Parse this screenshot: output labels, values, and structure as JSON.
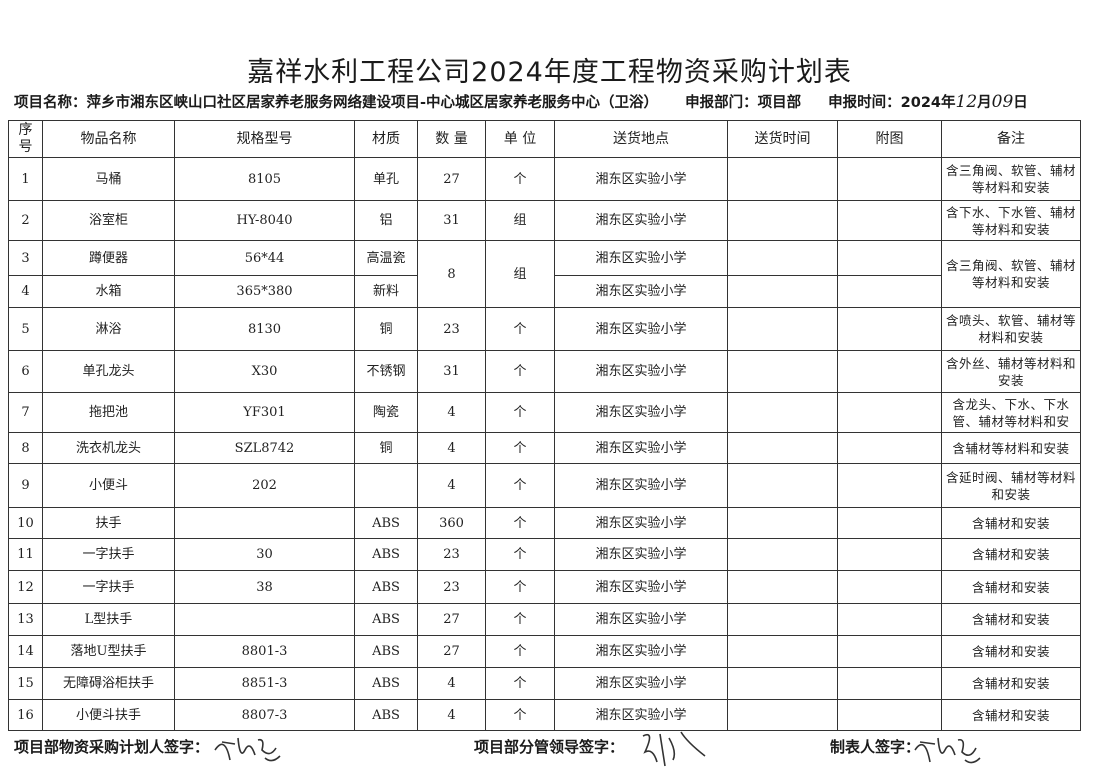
{
  "title": "嘉祥水利工程公司2024年度工程物资采购计划表",
  "project": {
    "name_label": "项目名称：",
    "name": "萍乡市湘东区峡山口社区居家养老服务网络建设项目-中心城区居家养老服务中心（卫浴）",
    "dept_label": "申报部门：",
    "dept": "项目部",
    "date_label": "申报时间：",
    "date_year": "2024年",
    "date_month": "12",
    "date_month_unit": "月",
    "date_day": "09",
    "date_day_unit": "日"
  },
  "columns": [
    "序号",
    "物品名称",
    "规格型号",
    "材质",
    "数 量",
    "单 位",
    "送货地点",
    "送货时间",
    "附图",
    "备注"
  ],
  "rows": [
    {
      "no": "1",
      "name": "马桶",
      "spec": "8105",
      "mat": "单孔",
      "qty": "27",
      "unit": "个",
      "loc": "湘东区实验小学",
      "note": "含三角阀、软管、辅材等材料和安装"
    },
    {
      "no": "2",
      "name": "浴室柜",
      "spec": "HY-8040",
      "mat": "铝",
      "qty": "31",
      "unit": "组",
      "loc": "湘东区实验小学",
      "note": "含下水、下水管、辅材等材料和安装"
    },
    {
      "no": "3",
      "name": "蹲便器",
      "spec": "56*44",
      "mat": "高温瓷",
      "qty": "8",
      "unit": "组",
      "loc": "湘东区实验小学",
      "note": "含三角阀、软管、辅材等材料和安装"
    },
    {
      "no": "4",
      "name": "水箱",
      "spec": "365*380",
      "mat": "新料",
      "loc": "湘东区实验小学"
    },
    {
      "no": "5",
      "name": "淋浴",
      "spec": "8130",
      "mat": "铜",
      "qty": "23",
      "unit": "个",
      "loc": "湘东区实验小学",
      "note": "含喷头、软管、辅材等材料和安装"
    },
    {
      "no": "6",
      "name": "单孔龙头",
      "spec": "X30",
      "mat": "不锈钢",
      "qty": "31",
      "unit": "个",
      "loc": "湘东区实验小学",
      "note": "含外丝、辅材等材料和安装"
    },
    {
      "no": "7",
      "name": "拖把池",
      "spec": "YF301",
      "mat": "陶瓷",
      "qty": "4",
      "unit": "个",
      "loc": "湘东区实验小学",
      "note": "含龙头、下水、下水管、辅材等材料和安"
    },
    {
      "no": "8",
      "name": "洗衣机龙头",
      "spec": "SZL8742",
      "mat": "铜",
      "qty": "4",
      "unit": "个",
      "loc": "湘东区实验小学",
      "note": "含辅材等材料和安装"
    },
    {
      "no": "9",
      "name": "小便斗",
      "spec": "202",
      "mat": "",
      "qty": "4",
      "unit": "个",
      "loc": "湘东区实验小学",
      "note": "含延时阀、辅材等材料和安装"
    },
    {
      "no": "10",
      "name": "扶手",
      "spec": "",
      "mat": "ABS",
      "qty": "360",
      "unit": "个",
      "loc": "湘东区实验小学",
      "note": "含辅材和安装"
    },
    {
      "no": "11",
      "name": "一字扶手",
      "spec": "30",
      "mat": "ABS",
      "qty": "23",
      "unit": "个",
      "loc": "湘东区实验小学",
      "note": "含辅材和安装"
    },
    {
      "no": "12",
      "name": "一字扶手",
      "spec": "38",
      "mat": "ABS",
      "qty": "23",
      "unit": "个",
      "loc": "湘东区实验小学",
      "note": "含辅材和安装"
    },
    {
      "no": "13",
      "name": "L型扶手",
      "spec": "",
      "mat": "ABS",
      "qty": "27",
      "unit": "个",
      "loc": "湘东区实验小学",
      "note": "含辅材和安装"
    },
    {
      "no": "14",
      "name": "落地U型扶手",
      "spec": "8801-3",
      "mat": "ABS",
      "qty": "27",
      "unit": "个",
      "loc": "湘东区实验小学",
      "note": "含辅材和安装"
    },
    {
      "no": "15",
      "name": "无障碍浴柜扶手",
      "spec": "8851-3",
      "mat": "ABS",
      "qty": "4",
      "unit": "个",
      "loc": "湘东区实验小学",
      "note": "含辅材和安装"
    },
    {
      "no": "16",
      "name": "小便斗扶手",
      "spec": "8807-3",
      "mat": "ABS",
      "qty": "4",
      "unit": "个",
      "loc": "湘东区实验小学",
      "note": "含辅材和安装"
    }
  ],
  "footer": {
    "planner": "项目部物资采购计划人签字：",
    "leader": "项目部分管领导签字：",
    "maker": "制表人签字："
  }
}
